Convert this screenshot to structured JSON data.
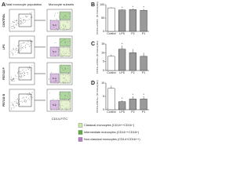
{
  "panel_a": {
    "label": "A",
    "header_left": "Total monocyte population",
    "header_right": "Monocyte subsets",
    "rows": [
      "CONTROL",
      "LPS",
      "FB7102 P",
      "FB7102 B"
    ],
    "gate_labels": [
      "I",
      "N-C"
    ],
    "x_axis_label": "CD14-FITC"
  },
  "legend": {
    "items": [
      {
        "name": "Classical monocytes (CD14++CD16−)",
        "color": "#cfe8a8"
      },
      {
        "name": "Intermediate monocytes (CD14++CD16+)",
        "color": "#5fae3e"
      },
      {
        "name": "Non-classical monocytes (CD14+CD16++)",
        "color": "#b77fc8"
      }
    ]
  },
  "chart_data": [
    {
      "type": "bar",
      "panel": "B",
      "y_label": "CD14++CD16− (% monocytes)",
      "categories": [
        "Control",
        "LPS",
        "P2",
        "P1"
      ],
      "values": [
        88,
        80,
        82,
        79
      ],
      "errors": [
        3,
        3,
        4,
        5
      ],
      "colors": [
        "#ffffff",
        "#9a9a9a",
        "#9a9a9a",
        "#9a9a9a"
      ],
      "markers": [
        null,
        "*",
        "*",
        "*"
      ],
      "ylim": [
        0,
        100
      ],
      "yticks": [
        0,
        50,
        100
      ]
    },
    {
      "type": "bar",
      "panel": "C",
      "y_label": "CD14++CD16+ (% monocytes)",
      "categories": [
        "Control",
        "LPS",
        "P2",
        "P1"
      ],
      "values": [
        8,
        12,
        10,
        8
      ],
      "errors": [
        1,
        2,
        2,
        2
      ],
      "colors": [
        "#ffffff",
        "#9a9a9a",
        "#9a9a9a",
        "#9a9a9a"
      ],
      "markers": [
        null,
        "*",
        null,
        null
      ],
      "ylim": [
        0,
        15
      ],
      "yticks": [
        0,
        5,
        10,
        15
      ]
    },
    {
      "type": "bar",
      "panel": "D",
      "y_label": "CD14+CD16++ (% monocytes)",
      "categories": [
        "Control",
        "LPS",
        "P2",
        "P1"
      ],
      "values": [
        8,
        3,
        4,
        4
      ],
      "errors": [
        1,
        0.5,
        1,
        1
      ],
      "colors": [
        "#ffffff",
        "#9a9a9a",
        "#9a9a9a",
        "#9a9a9a"
      ],
      "markers": [
        null,
        "*",
        "*",
        "*"
      ],
      "ylim": [
        0,
        10
      ],
      "yticks": [
        0,
        5,
        10
      ]
    }
  ]
}
